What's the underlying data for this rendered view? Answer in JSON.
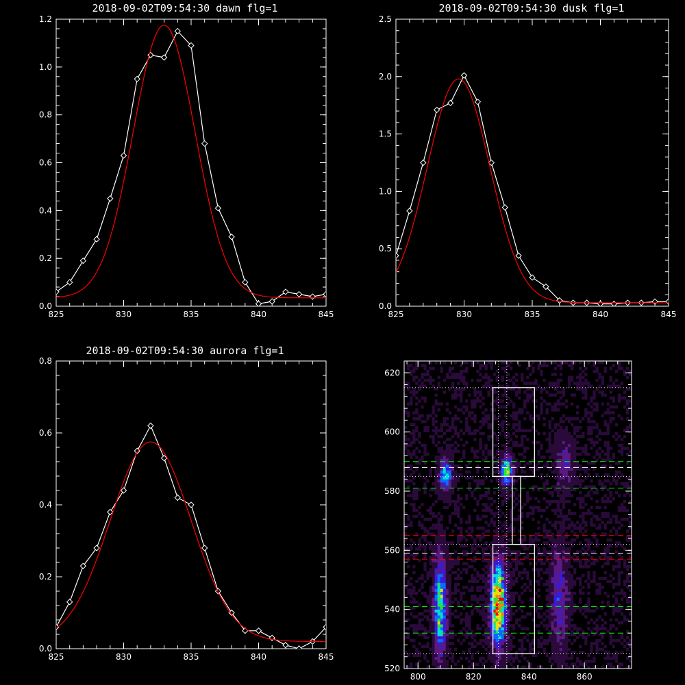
{
  "chart_data": [
    {
      "type": "line",
      "title": "2018-09-02T09:54:30 dawn flg=1",
      "xlim": [
        825,
        845
      ],
      "ylim": [
        0,
        1.2
      ],
      "xticks": [
        "825",
        "830",
        "835",
        "840",
        "845"
      ],
      "yticks": [
        "0.0",
        "0.2",
        "0.4",
        "0.6",
        "0.8",
        "1.0",
        "1.2"
      ],
      "series": [
        {
          "color": "#ffffff",
          "marker": "diamond",
          "x": [
            825,
            826,
            827,
            828,
            829,
            830,
            831,
            832,
            833,
            834,
            835,
            836,
            837,
            838,
            839,
            840,
            841,
            842,
            843,
            844,
            845
          ],
          "y": [
            0.06,
            0.1,
            0.19,
            0.28,
            0.45,
            0.63,
            0.95,
            1.05,
            1.04,
            1.15,
            1.09,
            0.68,
            0.41,
            0.29,
            0.1,
            0.01,
            0.02,
            0.06,
            0.05,
            0.04,
            0.05
          ]
        },
        {
          "color": "#ff0000",
          "model": "gaussian",
          "center": 833.0,
          "amplitude": 1.14,
          "sigma": 2.3,
          "baseline": 0.035
        }
      ]
    },
    {
      "type": "line",
      "title": "2018-09-02T09:54:30 dusk flg=1",
      "xlim": [
        825,
        845
      ],
      "ylim": [
        0,
        2.5
      ],
      "xticks": [
        "825",
        "830",
        "835",
        "840",
        "845"
      ],
      "yticks": [
        "0.0",
        "0.5",
        "1.0",
        "1.5",
        "2.0",
        "2.5"
      ],
      "series": [
        {
          "color": "#ffffff",
          "marker": "diamond",
          "x": [
            825,
            826,
            827,
            828,
            829,
            830,
            831,
            832,
            833,
            834,
            835,
            836,
            837,
            838,
            839,
            840,
            841,
            842,
            843,
            844,
            845
          ],
          "y": [
            0.44,
            0.83,
            1.25,
            1.71,
            1.77,
            2.01,
            1.78,
            1.25,
            0.86,
            0.44,
            0.25,
            0.17,
            0.05,
            0.03,
            0.03,
            0.02,
            0.02,
            0.03,
            0.03,
            0.04,
            0.04
          ]
        },
        {
          "color": "#ff0000",
          "model": "gaussian",
          "center": 829.6,
          "amplitude": 1.95,
          "sigma": 2.3,
          "baseline": 0.03
        }
      ]
    },
    {
      "type": "line",
      "title": "2018-09-02T09:54:30 aurora flg=1",
      "xlim": [
        825,
        845
      ],
      "ylim": [
        0,
        0.8
      ],
      "xticks": [
        "825",
        "830",
        "835",
        "840",
        "845"
      ],
      "yticks": [
        "0.0",
        "0.2",
        "0.4",
        "0.6",
        "0.8"
      ],
      "series": [
        {
          "color": "#ffffff",
          "marker": "diamond",
          "x": [
            825,
            826,
            827,
            828,
            829,
            830,
            831,
            832,
            833,
            834,
            835,
            836,
            837,
            838,
            839,
            840,
            841,
            842,
            843,
            844,
            845
          ],
          "y": [
            0.06,
            0.13,
            0.23,
            0.28,
            0.38,
            0.44,
            0.55,
            0.62,
            0.53,
            0.42,
            0.4,
            0.28,
            0.16,
            0.1,
            0.05,
            0.05,
            0.03,
            0.01,
            0.0,
            0.02,
            0.06
          ]
        },
        {
          "color": "#ff0000",
          "model": "gaussian",
          "center": 832.0,
          "amplitude": 0.555,
          "sigma": 3.0,
          "baseline": 0.02
        }
      ]
    },
    {
      "type": "heatmap",
      "title": "",
      "xlim": [
        795,
        877
      ],
      "ylim": [
        520,
        624
      ],
      "xticks": [
        "800",
        "820",
        "840",
        "860"
      ],
      "yticks": [
        "520",
        "540",
        "560",
        "580",
        "600",
        "620"
      ],
      "colormap": [
        "#000000",
        "#2a0a3a",
        "#5a1a82",
        "#3b1ad8",
        "#0a6cff",
        "#00e0d0",
        "#30e040",
        "#e6e000",
        "#ff8000",
        "#ff0000"
      ],
      "emission_sources": [
        {
          "x": 808,
          "y": 541,
          "sx": 1.5,
          "sy": 11,
          "amp": 0.62
        },
        {
          "x": 810,
          "y": 586,
          "sx": 1.6,
          "sy": 3.5,
          "amp": 0.55
        },
        {
          "x": 829,
          "y": 542,
          "sx": 1.8,
          "sy": 9,
          "amp": 0.98
        },
        {
          "x": 832,
          "y": 587,
          "sx": 1.4,
          "sy": 3.5,
          "amp": 0.65
        },
        {
          "x": 851,
          "y": 544,
          "sx": 2.0,
          "sy": 11,
          "amp": 0.3
        },
        {
          "x": 853,
          "y": 590,
          "sx": 2.0,
          "sy": 6,
          "amp": 0.22
        }
      ],
      "boxes": [
        {
          "x": [
            827,
            842
          ],
          "y": [
            525,
            562
          ]
        },
        {
          "x": [
            827,
            842
          ],
          "y": [
            585,
            615
          ]
        },
        {
          "x": [
            834,
            837
          ],
          "y": [
            562,
            585
          ]
        }
      ],
      "vertical_dotted": [
        829,
        832
      ],
      "horizontal_lines": [
        {
          "y": 615,
          "color": "#ffffff",
          "style": "dotted"
        },
        {
          "y": 585,
          "color": "#ffffff",
          "style": "dotted"
        },
        {
          "y": 562,
          "color": "#ffffff",
          "style": "dotted"
        },
        {
          "y": 525,
          "color": "#ffffff",
          "style": "dotted"
        },
        {
          "y": 590,
          "color": "#00ff00",
          "style": "dashed"
        },
        {
          "y": 581,
          "color": "#00ff00",
          "style": "dashed"
        },
        {
          "y": 541,
          "color": "#00ff00",
          "style": "dashed"
        },
        {
          "y": 532,
          "color": "#00ff00",
          "style": "dashed"
        },
        {
          "y": 588,
          "color": "#ffffff",
          "style": "dashed"
        },
        {
          "y": 559,
          "color": "#ffffff",
          "style": "dashed"
        },
        {
          "y": 565,
          "color": "#ff0000",
          "style": "dashed"
        },
        {
          "y": 557,
          "color": "#ff0000",
          "style": "dashed"
        }
      ]
    }
  ]
}
